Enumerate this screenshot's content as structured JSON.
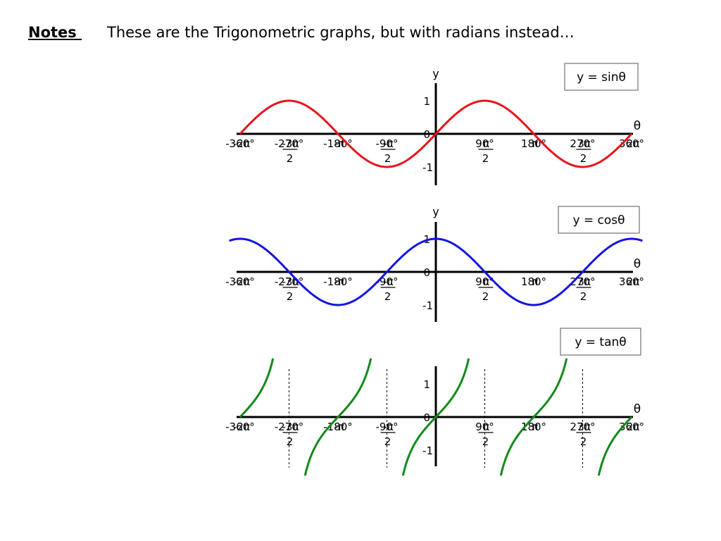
{
  "header": {
    "notes_label": "Notes ",
    "text": "These are the Trigonometric graphs, but with radians instead…"
  },
  "chart_data": [
    {
      "type": "line",
      "label": "y = sinθ",
      "function": "sin",
      "xlabel": "θ",
      "ylabel": "y",
      "xlim": [
        -360,
        360
      ],
      "ylim": [
        -1,
        1
      ],
      "ytick_labels": [
        "1",
        "0",
        "-1"
      ],
      "x_ticks": [
        {
          "value": -360,
          "deg": "-360°",
          "rad": "-2π"
        },
        {
          "value": -270,
          "deg": "-270°",
          "rad": "-3π",
          "den": "2"
        },
        {
          "value": -180,
          "deg": "-180°",
          "rad": "-π"
        },
        {
          "value": -90,
          "deg": "-90°",
          "rad": "-π",
          "den": "2"
        },
        {
          "value": 90,
          "deg": "90°",
          "rad": "π",
          "den": "2"
        },
        {
          "value": 180,
          "deg": "180°",
          "rad": "π"
        },
        {
          "value": 270,
          "deg": "270°",
          "rad": "3π",
          "den": "2"
        },
        {
          "value": 360,
          "deg": "360°",
          "rad": "2π"
        }
      ],
      "color": "#e8141c"
    },
    {
      "type": "line",
      "label": "y = cosθ",
      "function": "cos",
      "xlabel": "θ",
      "ylabel": "y",
      "xlim": [
        -360,
        360
      ],
      "ylim": [
        -1,
        1
      ],
      "ytick_labels": [
        "1",
        "0",
        "-1"
      ],
      "x_ticks": [
        {
          "value": -360,
          "deg": "-360°",
          "rad": "-2π"
        },
        {
          "value": -270,
          "deg": "-270°",
          "rad": "-3π",
          "den": "2"
        },
        {
          "value": -180,
          "deg": "-180°",
          "rad": "-π"
        },
        {
          "value": -90,
          "deg": "-90°",
          "rad": "-π",
          "den": "2"
        },
        {
          "value": 90,
          "deg": "90°",
          "rad": "π",
          "den": "2"
        },
        {
          "value": 180,
          "deg": "180°",
          "rad": "π"
        },
        {
          "value": 270,
          "deg": "270°",
          "rad": "3π",
          "den": "2"
        },
        {
          "value": 360,
          "deg": "360°",
          "rad": "2π"
        }
      ],
      "color": "#1414e0"
    },
    {
      "type": "line",
      "label": "y = tanθ",
      "function": "tan",
      "xlabel": "θ",
      "ylabel": "",
      "xlim": [
        -360,
        360
      ],
      "ylim": [
        -1,
        1
      ],
      "ytick_labels": [
        "1",
        "0",
        "-1"
      ],
      "asymptotes": [
        -270,
        -90,
        90,
        270
      ],
      "x_ticks": [
        {
          "value": -360,
          "deg": "-360°",
          "rad": "-2π"
        },
        {
          "value": -270,
          "deg": "-270°",
          "rad": "-3π",
          "den": "2"
        },
        {
          "value": -180,
          "deg": "-180°",
          "rad": "-π"
        },
        {
          "value": -90,
          "deg": "-90°",
          "rad": "-π",
          "den": "2"
        },
        {
          "value": 90,
          "deg": "90°",
          "rad": "π",
          "den": "2"
        },
        {
          "value": 180,
          "deg": "180°",
          "rad": "π"
        },
        {
          "value": 270,
          "deg": "270°",
          "rad": "3π",
          "den": "2"
        },
        {
          "value": 360,
          "deg": "360°",
          "rad": "2π"
        }
      ],
      "color": "#118a1a"
    }
  ]
}
